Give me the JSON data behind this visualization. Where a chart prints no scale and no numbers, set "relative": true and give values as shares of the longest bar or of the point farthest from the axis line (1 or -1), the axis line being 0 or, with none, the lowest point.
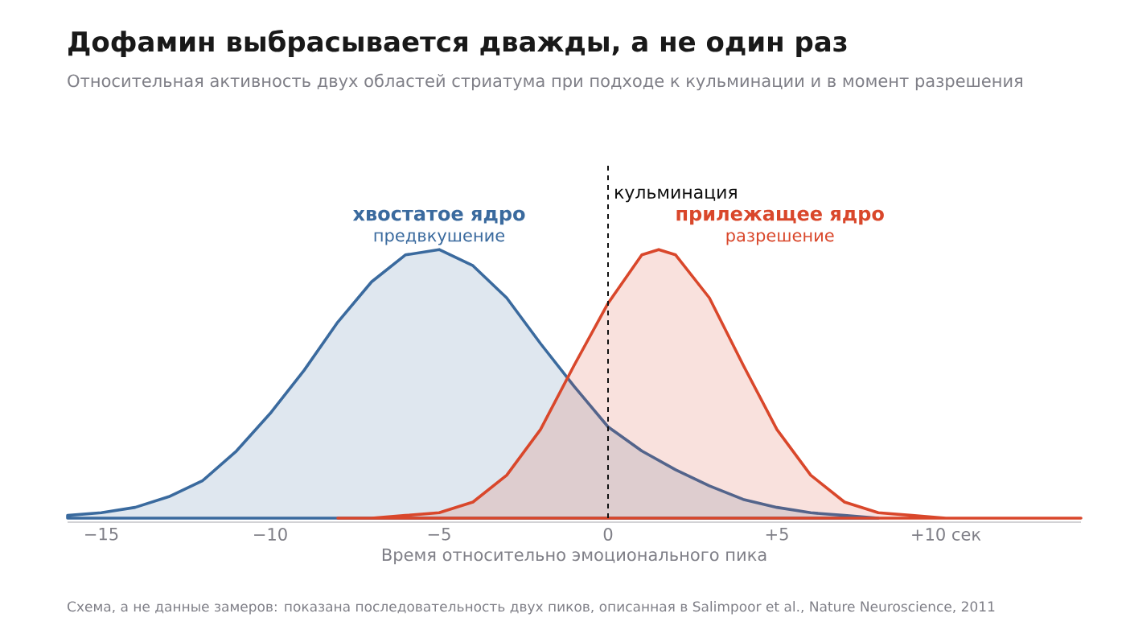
{
  "chart_data": {
    "type": "area",
    "relative": true,
    "title": "Дофамин выбрасывается дважды, а не один раз",
    "subtitle": "Относительная активность двух областей стриатума при подходе к кульминации и в момент разрешения",
    "xlabel": "Время относительно эмоционального пика",
    "xticks": [
      {
        "value": -15,
        "label": "−15"
      },
      {
        "value": -10,
        "label": "−10"
      },
      {
        "value": -5,
        "label": "−5"
      },
      {
        "value": 0,
        "label": "0"
      },
      {
        "value": 5,
        "label": "+5"
      },
      {
        "value": 10,
        "label": "+10 сек"
      }
    ],
    "xlim": [
      -16,
      14
    ],
    "tick_labels": "x",
    "series": [
      {
        "name": "хвостатое ядро",
        "color": "#3a6a9e",
        "x": [
          -16,
          -15,
          -14,
          -13,
          -12,
          -11,
          -10,
          -9,
          -8,
          -7,
          -6,
          -5,
          -4,
          -3,
          -2,
          -1,
          0,
          1,
          2,
          3,
          4,
          5,
          6,
          7,
          8
        ],
        "values": [
          0.01,
          0.02,
          0.04,
          0.08,
          0.14,
          0.25,
          0.39,
          0.55,
          0.73,
          0.88,
          0.98,
          1.0,
          0.94,
          0.82,
          0.65,
          0.49,
          0.34,
          0.25,
          0.18,
          0.12,
          0.07,
          0.04,
          0.02,
          0.01,
          0.0
        ]
      },
      {
        "name": "прилежащее ядро",
        "color": "#d9472b",
        "x": [
          -8,
          -7,
          -6,
          -5,
          -4,
          -3,
          -2,
          -1,
          0,
          1,
          1.5,
          2,
          3,
          4,
          5,
          6,
          7,
          8,
          9,
          10,
          11,
          12,
          13,
          14
        ],
        "values": [
          0.0,
          0.0,
          0.01,
          0.02,
          0.06,
          0.16,
          0.33,
          0.57,
          0.8,
          0.98,
          1.0,
          0.98,
          0.82,
          0.57,
          0.33,
          0.16,
          0.06,
          0.02,
          0.01,
          0.0,
          0.0,
          0.0,
          0.0,
          0.0
        ]
      }
    ],
    "ref_lines": [
      {
        "axis": "x",
        "value": 0,
        "label": "кульминация",
        "color": "#111111",
        "line_style": "dashed"
      }
    ],
    "annotations": [
      "предвкушение",
      "разрешение",
      "Схема, а не данные замеров: показана последовательность двух пиков, описанная в Salimpoor et al., Nature Neuroscience, 2011"
    ]
  }
}
